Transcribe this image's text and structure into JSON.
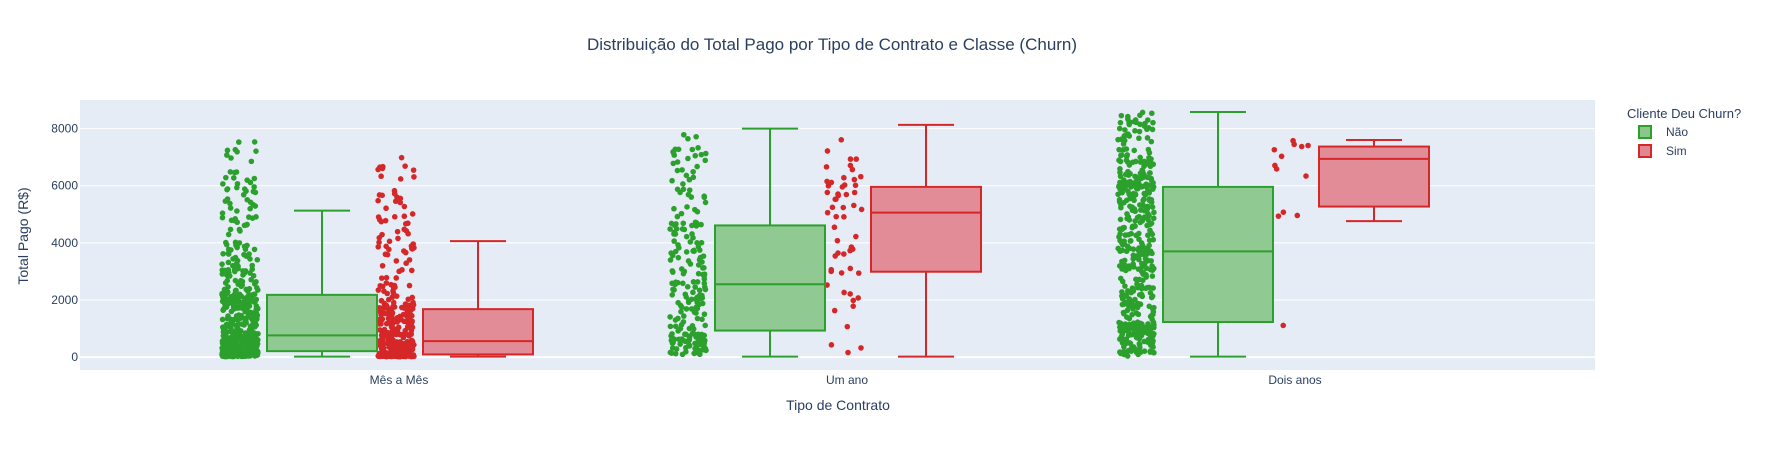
{
  "chart_data": {
    "type": "box",
    "title": "Distribuição do Total Pago por Tipo de Contrato e Classe (Churn)",
    "xlabel": "Tipo de Contrato",
    "ylabel": "Total Pago (R$)",
    "categories": [
      "Mês a Mês",
      "Um ano",
      "Dois anos"
    ],
    "ylim": [
      -450,
      9000
    ],
    "yticks": [
      0,
      2000,
      4000,
      6000,
      8000
    ],
    "yticklabels": [
      "0",
      "2000",
      "4000",
      "6000",
      "8000"
    ],
    "grid": true,
    "background": "#e5ecf6",
    "legend": {
      "title": "Cliente Deu Churn?",
      "position": "top-right"
    },
    "series": [
      {
        "name": "Não",
        "color": "#2ca02c",
        "fill": "#8bc78b",
        "boxes": [
          {
            "category": "Mês a Mês",
            "min": 19,
            "q1": 210,
            "median": 760,
            "q3": 2180,
            "whisker_high": 5130,
            "points_max": 7550
          },
          {
            "category": "Um ano",
            "min": 19,
            "q1": 930,
            "median": 2550,
            "q3": 4610,
            "whisker_high": 8000,
            "points_max": 8000
          },
          {
            "category": "Dois anos",
            "min": 20,
            "q1": 1230,
            "median": 3700,
            "q3": 5960,
            "whisker_high": 8580,
            "points_max": 8580
          }
        ]
      },
      {
        "name": "Sim",
        "color": "#d62728",
        "fill": "#e08790",
        "boxes": [
          {
            "category": "Mês a Mês",
            "min": 19,
            "q1": 95,
            "median": 560,
            "q3": 1680,
            "whisker_high": 4060,
            "points_max": 7100
          },
          {
            "category": "Um ano",
            "min": 20,
            "q1": 2990,
            "median": 5060,
            "q3": 5960,
            "whisker_high": 8130,
            "points_max": 8130
          },
          {
            "category": "Dois anos",
            "min": 4760,
            "q1": 5270,
            "median": 6940,
            "q3": 7370,
            "whisker_high": 7600,
            "points_max": 7600,
            "outliers": [
              1110
            ]
          }
        ]
      }
    ]
  }
}
